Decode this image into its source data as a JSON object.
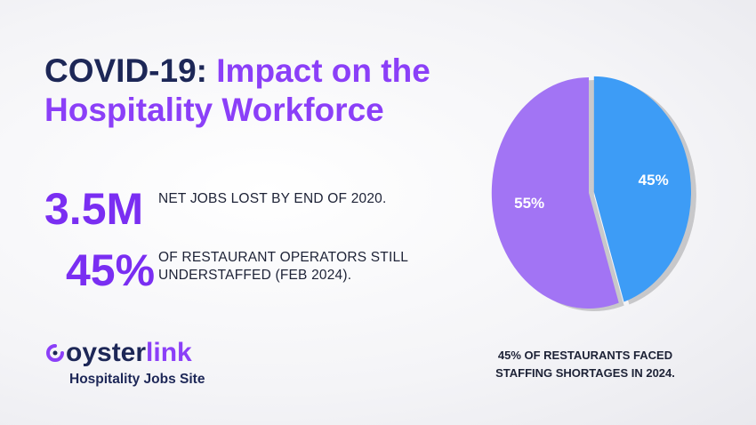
{
  "headline": {
    "lead": "COVID-19:",
    "rest": "Impact on the Hospitality Workforce"
  },
  "stats": [
    {
      "figure": "3.5M",
      "text": "NET JOBS LOST BY END OF 2020."
    },
    {
      "figure": "45%",
      "text": "OF RESTAURANT OPERATORS STILL UNDERSTAFFED (FEB 2024)."
    }
  ],
  "brand": {
    "name_lead": "oyster",
    "name_tail": "link",
    "tagline": "Hospitality Jobs Site"
  },
  "chart_data": {
    "type": "pie",
    "values": [
      45,
      55
    ],
    "value_labels": [
      "45%",
      "55%"
    ],
    "colors": [
      "#3d9cf6",
      "#a274f4"
    ],
    "caption": "45% OF RESTAURANTS FACED STAFFING SHORTAGES IN 2024."
  }
}
